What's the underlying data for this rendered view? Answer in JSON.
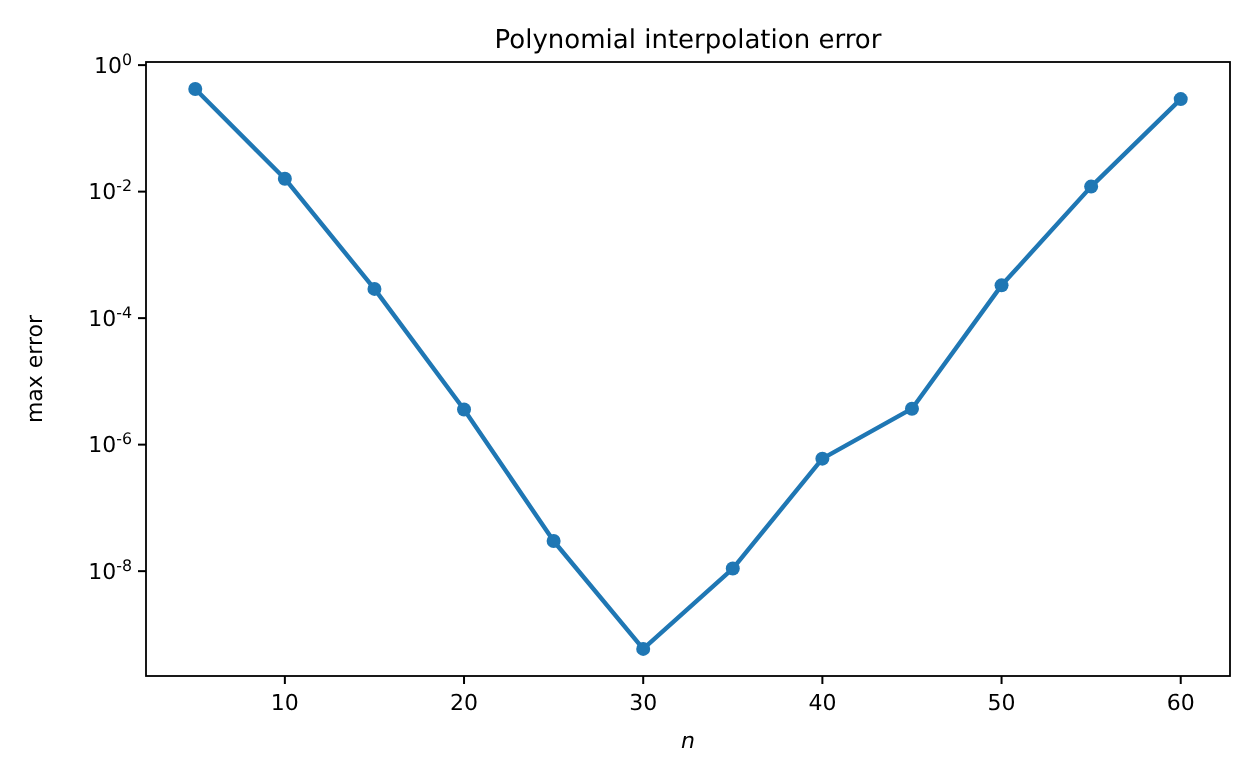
{
  "chart_data": {
    "type": "line",
    "title": "Polynomial interpolation error",
    "xlabel": "n",
    "ylabel": "max error",
    "log": "y",
    "marker": "circle",
    "line_style": "solid",
    "grid": false,
    "x": [
      5,
      10,
      15,
      20,
      25,
      30,
      35,
      40,
      45,
      50,
      55,
      60
    ],
    "series": [
      {
        "color": "#1f77b4",
        "values": [
          0.42,
          0.016,
          0.00029,
          3.6e-06,
          3e-08,
          5.9e-10,
          1.1e-08,
          6e-07,
          3.7e-06,
          0.00033,
          0.012,
          0.29
        ]
      }
    ],
    "xlim": [
      2.25,
      62.75
    ],
    "xticks": [
      10,
      20,
      30,
      40,
      50,
      60
    ],
    "ylim": [
      2.2e-10,
      1.12
    ],
    "yticks": [
      {
        "value": 1e-08,
        "label": "10$^{-8}$"
      },
      {
        "value": 1e-06,
        "label": "10$^{-6}$"
      },
      {
        "value": 0.0001,
        "label": "10$^{-4}$"
      },
      {
        "value": 0.01,
        "label": "10$^{-2}$"
      },
      {
        "value": 1,
        "label": "10$^{0}$"
      }
    ]
  }
}
